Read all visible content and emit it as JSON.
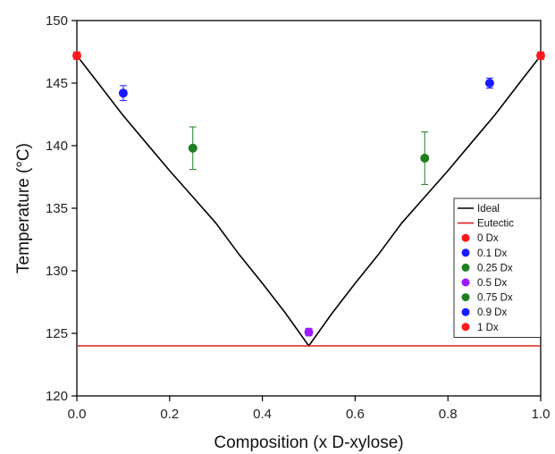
{
  "chart_data": {
    "type": "scatter",
    "xlabel": "Composition (x D-xylose)",
    "ylabel": "Temperature (°C)",
    "xlim": [
      0,
      1
    ],
    "ylim": [
      120,
      150
    ],
    "xticks": [
      0.0,
      0.2,
      0.4,
      0.6,
      0.8,
      1.0
    ],
    "xtick_labels": [
      "0.0",
      "0.2",
      "0.4",
      "0.6",
      "0.8",
      "1.0"
    ],
    "yticks": [
      120,
      125,
      130,
      135,
      140,
      145,
      150
    ],
    "ytick_labels": [
      "120",
      "125",
      "130",
      "135",
      "140",
      "145",
      "150"
    ],
    "grid": false,
    "legend_position": "right",
    "lines": [
      {
        "name": "Ideal",
        "color": "#000000",
        "x": [
          0.0,
          0.05,
          0.1,
          0.15,
          0.2,
          0.25,
          0.3,
          0.35,
          0.4,
          0.45,
          0.5,
          0.55,
          0.6,
          0.65,
          0.7,
          0.75,
          0.8,
          0.85,
          0.9,
          0.95,
          1.0
        ],
        "y": [
          147.2,
          144.8,
          142.4,
          140.2,
          138.0,
          135.9,
          133.8,
          131.3,
          129.0,
          126.6,
          124.0,
          126.6,
          129.0,
          131.3,
          133.8,
          135.9,
          138.0,
          140.2,
          142.4,
          144.8,
          147.2
        ]
      },
      {
        "name": "Eutectic",
        "color": "#e02020",
        "x": [
          0.0,
          1.0
        ],
        "y": [
          124.0,
          124.0
        ]
      }
    ],
    "series": [
      {
        "name": "0 Dx",
        "color": "#ff1a1a",
        "x": [
          0.0
        ],
        "y": [
          147.2
        ],
        "err": [
          0.3
        ]
      },
      {
        "name": "0.1 Dx",
        "color": "#1a1aff",
        "x": [
          0.1
        ],
        "y": [
          144.2
        ],
        "err": [
          0.6
        ]
      },
      {
        "name": "0.25 Dx",
        "color": "#1f7f1f",
        "x": [
          0.25
        ],
        "y": [
          139.8
        ],
        "err": [
          1.7
        ]
      },
      {
        "name": "0.5 Dx",
        "color": "#9b1aff",
        "x": [
          0.5
        ],
        "y": [
          125.1
        ],
        "err": [
          0.3
        ]
      },
      {
        "name": "0.75 Dx",
        "color": "#1f7f1f",
        "x": [
          0.75
        ],
        "y": [
          139.0
        ],
        "err": [
          2.1
        ]
      },
      {
        "name": "0.9 Dx",
        "color": "#1a1aff",
        "x": [
          0.89
        ],
        "y": [
          145.0
        ],
        "err": [
          0.4
        ]
      },
      {
        "name": "1 Dx",
        "color": "#ff1a1a",
        "x": [
          1.0
        ],
        "y": [
          147.2
        ],
        "err": [
          0.3
        ]
      }
    ]
  }
}
